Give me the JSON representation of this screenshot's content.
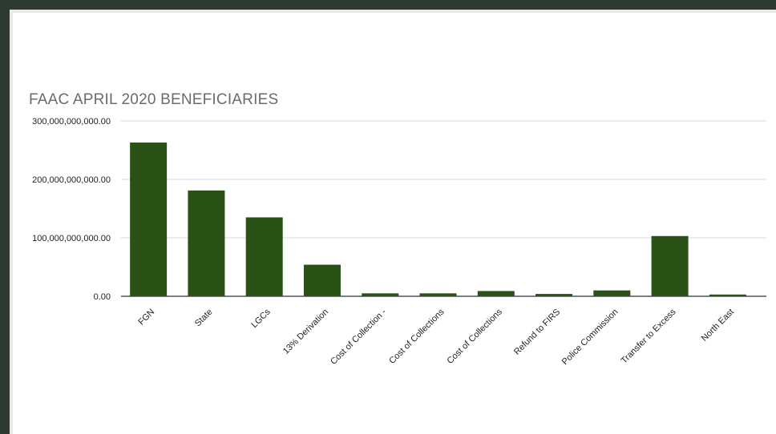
{
  "chart_data": {
    "type": "bar",
    "title": "FAAC APRIL 2020 BENEFICIARIES",
    "xlabel": "",
    "ylabel": "",
    "categories": [
      "FGN",
      "State",
      "LGCs",
      "13% Derivation",
      "Cost of Collection -",
      "Cost of Collections",
      "Cost of Collections",
      "Refund to FIRS",
      "Police Commission",
      "Transfer to Excess",
      "North East"
    ],
    "values": [
      263000000000,
      181000000000,
      135000000000,
      54000000000,
      5000000000,
      5000000000,
      9000000000,
      4000000000,
      10000000000,
      103000000000,
      3000000000
    ],
    "ylim": [
      0,
      300000000000
    ],
    "y_ticks": [
      {
        "value": 0,
        "label": "0.00"
      },
      {
        "value": 100000000000,
        "label": "100,000,000,000.00"
      },
      {
        "value": 200000000000,
        "label": "200,000,000,000.00"
      },
      {
        "value": 300000000000,
        "label": "300,000,000,000.00"
      }
    ],
    "grid": true,
    "bar_color": "#2b5216"
  }
}
